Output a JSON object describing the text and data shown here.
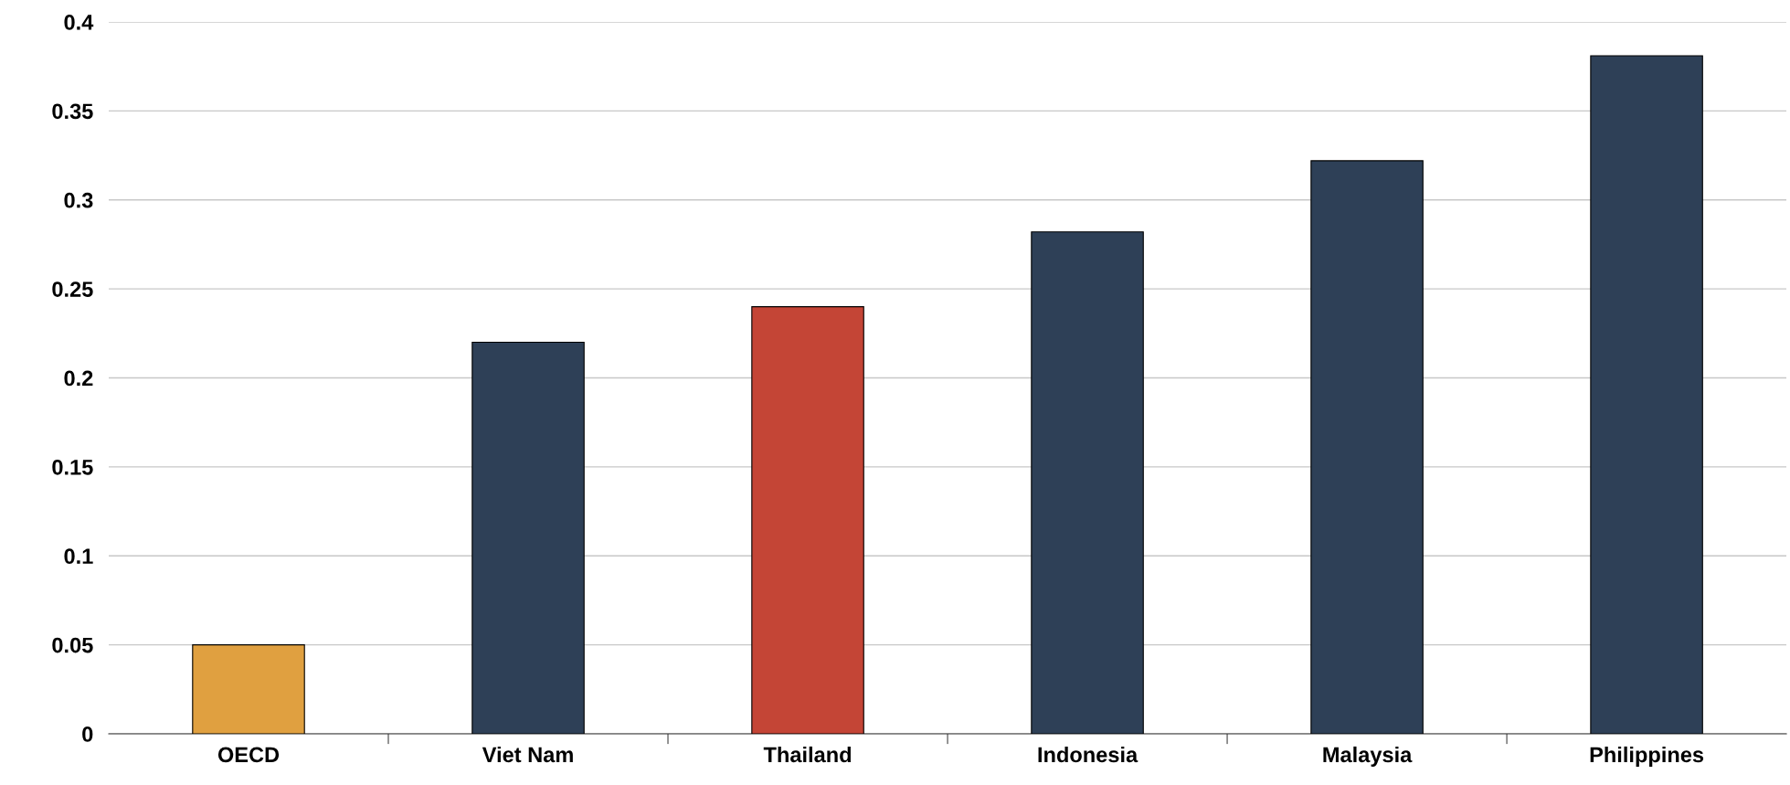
{
  "chart_data": {
    "type": "bar",
    "categories": [
      "OECD",
      "Viet Nam",
      "Thailand",
      "Indonesia",
      "Malaysia",
      "Philippines"
    ],
    "values": [
      0.05,
      0.22,
      0.24,
      0.282,
      0.322,
      0.381
    ],
    "colors": [
      "#e0a040",
      "#2e4057",
      "#c44536",
      "#2e4057",
      "#2e4057",
      "#2e4057"
    ],
    "ylim": [
      0,
      0.4
    ],
    "yticks": [
      {
        "value": 0,
        "label": "0"
      },
      0.05,
      0.1,
      0.15,
      0.2,
      0.25,
      0.3,
      0.35,
      0.4
    ],
    "grid": "y",
    "legend": false
  }
}
